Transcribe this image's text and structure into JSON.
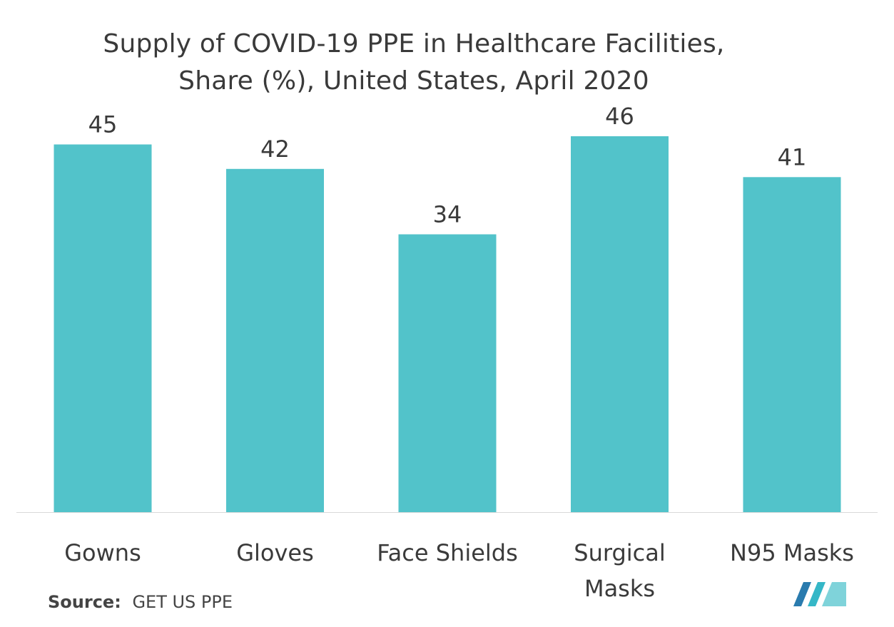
{
  "chart_data": {
    "type": "bar",
    "title_lines": [
      "Supply of COVID-19 PPE in Healthcare Facilities,",
      "Share (%), United States, April 2020"
    ],
    "categories": [
      "Gowns",
      "Gloves",
      "Face Shields",
      "Surgical Masks",
      "N95 Masks"
    ],
    "category_label_lines": [
      [
        "Gowns"
      ],
      [
        "Gloves"
      ],
      [
        "Face Shields"
      ],
      [
        "Surgical",
        "Masks"
      ],
      [
        "N95 Masks"
      ]
    ],
    "series": [
      {
        "name": "Share (%)",
        "values": [
          45,
          42,
          34,
          46,
          41
        ]
      }
    ],
    "values": [
      45,
      42,
      34,
      46,
      41
    ],
    "data_labels": [
      "45",
      "42",
      "34",
      "46",
      "41"
    ],
    "xlabel": "",
    "ylabel": "",
    "ylim": [
      0,
      46
    ],
    "grid": false,
    "legend": "none",
    "bar_color": "#52C3CA",
    "axis_color": "#D9D9D9"
  },
  "footer": {
    "source_label": "Source:",
    "source_text": "GET US PPE"
  },
  "logo": {
    "icon": "mordor-intelligence-logo-icon",
    "colors": [
      "#2A7BAE",
      "#35B7C7",
      "#7FD3DA"
    ]
  }
}
